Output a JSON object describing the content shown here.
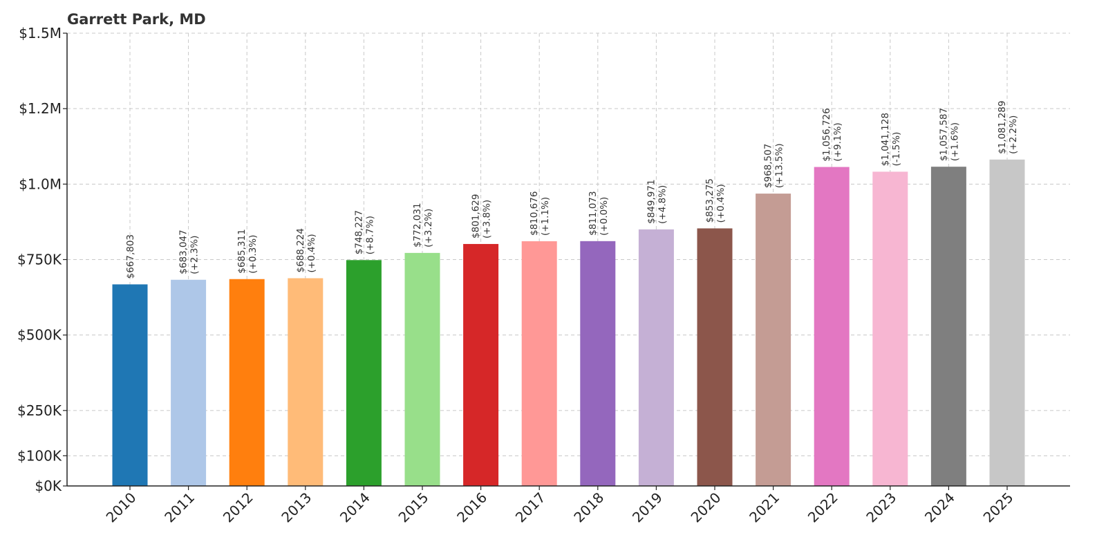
{
  "chart_data": {
    "type": "bar",
    "title": "Garrett Park, MD",
    "xlabel": "",
    "ylabel": "",
    "ylim": [
      0,
      1500000
    ],
    "grid": true,
    "categories": [
      "2010",
      "2011",
      "2012",
      "2013",
      "2014",
      "2015",
      "2016",
      "2017",
      "2018",
      "2019",
      "2020",
      "2021",
      "2022",
      "2023",
      "2024",
      "2025"
    ],
    "values": [
      667803,
      683047,
      685311,
      688224,
      748227,
      772031,
      801629,
      810676,
      811073,
      849971,
      853275,
      968507,
      1056726,
      1041128,
      1057587,
      1081289
    ],
    "value_labels": [
      "$667,803",
      "$683,047",
      "$685,311",
      "$688,224",
      "$748,227",
      "$772,031",
      "$801,629",
      "$810,676",
      "$811,073",
      "$849,971",
      "$853,275",
      "$968,507",
      "$1,056,726",
      "$1,041,128",
      "$1,057,587",
      "$1,081,289"
    ],
    "change_labels": [
      "",
      "(+2.3%)",
      "(+0.3%)",
      "(+0.4%)",
      "(+8.7%)",
      "(+3.2%)",
      "(+3.8%)",
      "(+1.1%)",
      "(+0.0%)",
      "(+4.8%)",
      "(+0.4%)",
      "(+13.5%)",
      "(+9.1%)",
      "(-1.5%)",
      "(+1.6%)",
      "(+2.2%)"
    ],
    "colors": [
      "#1f77b4",
      "#aec7e8",
      "#ff7f0e",
      "#ffbb78",
      "#2ca02c",
      "#98df8a",
      "#d62728",
      "#ff9896",
      "#9467bd",
      "#c5b0d5",
      "#8c564b",
      "#c49c94",
      "#e377c2",
      "#f7b6d2",
      "#7f7f7f",
      "#c7c7c7"
    ],
    "yticks": [
      {
        "value": 0,
        "label": "$0K"
      },
      {
        "value": 100000,
        "label": "$100K"
      },
      {
        "value": 250000,
        "label": "$250K"
      },
      {
        "value": 500000,
        "label": "$500K"
      },
      {
        "value": 750000,
        "label": "$750K"
      },
      {
        "value": 1000000,
        "label": "$1.0M"
      },
      {
        "value": 1250000,
        "label": "$1.2M"
      },
      {
        "value": 1500000,
        "label": "$1.5M"
      }
    ]
  }
}
